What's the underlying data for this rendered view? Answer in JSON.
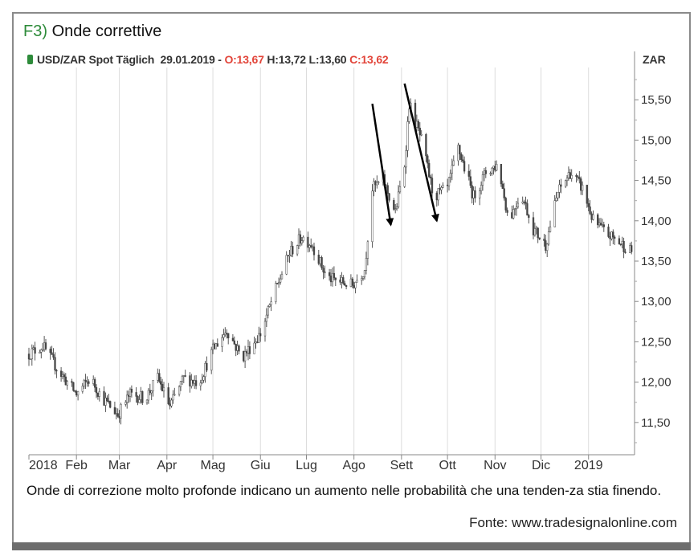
{
  "figure": {
    "number": "F3)",
    "title": "Onde correttive"
  },
  "header": {
    "instrument": "USD/ZAR Spot Täglich",
    "date": "29.01.2019",
    "separator": "-",
    "open_label": "O:",
    "open": "13,67",
    "high_label": "H:",
    "high": "13,72",
    "low_label": "L:",
    "low": "13,60",
    "close_label": "C:",
    "close": "13,62",
    "unit": "ZAR"
  },
  "caption": "Onde di correzione molto profonde indicano un aumento nelle probabilità che una tenden-za stia finendo.",
  "source": "Fonte: www.tradesignalonline.com",
  "colors": {
    "up_candle": "#ffffff",
    "down_candle": "#444444",
    "accent_red": "#e2453a",
    "accent_green": "#2e8b3a",
    "arrow": "#000000"
  },
  "chart_data": {
    "type": "candlestick",
    "title": "USD/ZAR Spot Täglich",
    "ylabel": "ZAR",
    "ylim": [
      11.1,
      15.9
    ],
    "y_ticks": [
      11.5,
      12.0,
      12.5,
      13.0,
      13.5,
      14.0,
      14.5,
      15.0,
      15.5
    ],
    "y_tick_labels": [
      "11,50",
      "12,00",
      "12,50",
      "13,00",
      "13,50",
      "14,00",
      "14,50",
      "15,00",
      "15,50"
    ],
    "x_months": [
      "2018",
      "Feb",
      "Mar",
      "Apr",
      "Mag",
      "Giu",
      "Lug",
      "Ago",
      "Sett",
      "Ott",
      "Nov",
      "Dic",
      "2019"
    ],
    "grid": true,
    "close_path": [
      {
        "date": "2018-01-01",
        "value": 12.35
      },
      {
        "date": "2018-01-10",
        "value": 12.45
      },
      {
        "date": "2018-01-20",
        "value": 12.15
      },
      {
        "date": "2018-02-01",
        "value": 11.85
      },
      {
        "date": "2018-02-10",
        "value": 12.05
      },
      {
        "date": "2018-02-18",
        "value": 11.8
      },
      {
        "date": "2018-02-28",
        "value": 11.6
      },
      {
        "date": "2018-03-08",
        "value": 11.85
      },
      {
        "date": "2018-03-18",
        "value": 11.8
      },
      {
        "date": "2018-03-26",
        "value": 12.05
      },
      {
        "date": "2018-04-03",
        "value": 11.7
      },
      {
        "date": "2018-04-12",
        "value": 12.05
      },
      {
        "date": "2018-04-22",
        "value": 12.0
      },
      {
        "date": "2018-05-01",
        "value": 12.4
      },
      {
        "date": "2018-05-10",
        "value": 12.65
      },
      {
        "date": "2018-05-20",
        "value": 12.3
      },
      {
        "date": "2018-06-01",
        "value": 12.6
      },
      {
        "date": "2018-06-10",
        "value": 13.1
      },
      {
        "date": "2018-06-20",
        "value": 13.6
      },
      {
        "date": "2018-06-28",
        "value": 13.8
      },
      {
        "date": "2018-07-05",
        "value": 13.7
      },
      {
        "date": "2018-07-14",
        "value": 13.3
      },
      {
        "date": "2018-07-22",
        "value": 13.25
      },
      {
        "date": "2018-07-31",
        "value": 13.2
      },
      {
        "date": "2018-08-08",
        "value": 13.4
      },
      {
        "date": "2018-08-13",
        "value": 14.4
      },
      {
        "date": "2018-08-20",
        "value": 14.5
      },
      {
        "date": "2018-08-28",
        "value": 14.1
      },
      {
        "date": "2018-09-03",
        "value": 14.7
      },
      {
        "date": "2018-09-06",
        "value": 15.45
      },
      {
        "date": "2018-09-14",
        "value": 15.0
      },
      {
        "date": "2018-09-22",
        "value": 14.3
      },
      {
        "date": "2018-10-01",
        "value": 14.4
      },
      {
        "date": "2018-10-08",
        "value": 14.9
      },
      {
        "date": "2018-10-18",
        "value": 14.3
      },
      {
        "date": "2018-10-26",
        "value": 14.6
      },
      {
        "date": "2018-11-03",
        "value": 14.7
      },
      {
        "date": "2018-11-10",
        "value": 14.0
      },
      {
        "date": "2018-11-18",
        "value": 14.35
      },
      {
        "date": "2018-11-26",
        "value": 13.9
      },
      {
        "date": "2018-12-04",
        "value": 13.7
      },
      {
        "date": "2018-12-12",
        "value": 14.35
      },
      {
        "date": "2018-12-20",
        "value": 14.6
      },
      {
        "date": "2018-12-28",
        "value": 14.4
      },
      {
        "date": "2019-01-04",
        "value": 14.0
      },
      {
        "date": "2019-01-12",
        "value": 13.85
      },
      {
        "date": "2019-01-20",
        "value": 13.75
      },
      {
        "date": "2019-01-29",
        "value": 13.62
      }
    ],
    "annotations": [
      {
        "type": "arrow",
        "from": {
          "date": "2018-08-13",
          "value": 15.45
        },
        "to": {
          "date": "2018-08-25",
          "value": 13.95
        }
      },
      {
        "type": "arrow",
        "from": {
          "date": "2018-09-03",
          "value": 15.7
        },
        "to": {
          "date": "2018-09-24",
          "value": 14.0
        }
      }
    ]
  }
}
